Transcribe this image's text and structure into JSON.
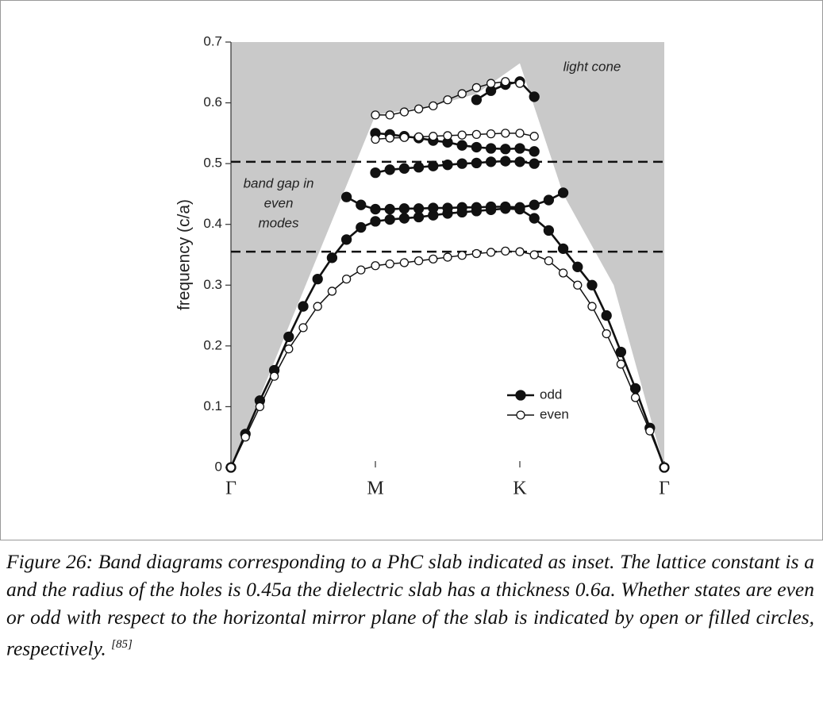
{
  "chart_data": {
    "type": "line",
    "y_label": "frequency (c/a)",
    "x": [
      0,
      0.1,
      0.2,
      0.3,
      0.4,
      0.5,
      0.6,
      0.7,
      0.8,
      0.9,
      1.0,
      1.1,
      1.2,
      1.3,
      1.4,
      1.5,
      1.6,
      1.7,
      1.8,
      1.9,
      2.0,
      2.1,
      2.2,
      2.3,
      2.4,
      2.5,
      2.6,
      2.7,
      2.8,
      2.9,
      3.0
    ],
    "xlim": [
      0,
      3
    ],
    "xticks": [
      {
        "value": 0,
        "label": "Γ"
      },
      {
        "value": 1,
        "label": "M"
      },
      {
        "value": 2,
        "label": "K"
      },
      {
        "value": 3,
        "label": "Γ"
      }
    ],
    "ylim": [
      0,
      0.7
    ],
    "yticks": [
      0,
      0.1,
      0.2,
      0.3,
      0.4,
      0.5,
      0.6,
      0.7
    ],
    "series": [
      {
        "name": "odd",
        "color": "#111111",
        "filled": true,
        "bands": [
          [
            0,
            0.055,
            0.11,
            0.16,
            0.215,
            0.265,
            0.31,
            0.345,
            0.375,
            0.395,
            0.405,
            0.408,
            0.41,
            0.412,
            0.415,
            0.418,
            0.42,
            0.422,
            0.424,
            0.426,
            0.425,
            0.41,
            0.39,
            0.36,
            0.33,
            0.3,
            0.25,
            0.19,
            0.13,
            0.065,
            0
          ],
          [
            null,
            null,
            null,
            null,
            null,
            null,
            null,
            null,
            0.445,
            0.432,
            0.425,
            0.425,
            0.426,
            0.426,
            0.427,
            0.427,
            0.428,
            0.428,
            0.429,
            0.429,
            0.428,
            0.432,
            0.44,
            0.452,
            null,
            null,
            null,
            null,
            null,
            null,
            null
          ],
          [
            null,
            null,
            null,
            null,
            null,
            null,
            null,
            null,
            null,
            null,
            0.485,
            0.49,
            0.492,
            0.494,
            0.496,
            0.498,
            0.5,
            0.501,
            0.503,
            0.504,
            0.503,
            0.5,
            null,
            null,
            null,
            null,
            null,
            null,
            null,
            null,
            null
          ],
          [
            null,
            null,
            null,
            null,
            null,
            null,
            null,
            null,
            null,
            null,
            0.55,
            0.548,
            0.545,
            0.542,
            0.538,
            0.535,
            0.53,
            0.527,
            0.525,
            0.524,
            0.525,
            0.52,
            null,
            null,
            null,
            null,
            null,
            null,
            null,
            null,
            null
          ],
          [
            null,
            null,
            null,
            null,
            null,
            null,
            null,
            null,
            null,
            null,
            null,
            null,
            null,
            null,
            null,
            null,
            null,
            0.605,
            0.62,
            0.63,
            0.635,
            0.61,
            null,
            null,
            null,
            null,
            null,
            null,
            null,
            null,
            null
          ]
        ]
      },
      {
        "name": "even",
        "color": "#111111",
        "filled": false,
        "bands": [
          [
            0,
            0.05,
            0.1,
            0.15,
            0.195,
            0.23,
            0.265,
            0.29,
            0.31,
            0.325,
            0.332,
            0.335,
            0.337,
            0.34,
            0.343,
            0.346,
            0.349,
            0.352,
            0.354,
            0.356,
            0.355,
            0.35,
            0.34,
            0.32,
            0.3,
            0.265,
            0.22,
            0.17,
            0.115,
            0.06,
            0
          ],
          [
            null,
            null,
            null,
            null,
            null,
            null,
            null,
            null,
            null,
            null,
            0.54,
            0.542,
            0.543,
            0.544,
            0.545,
            0.546,
            0.547,
            0.548,
            0.549,
            0.55,
            0.55,
            0.545,
            null,
            null,
            null,
            null,
            null,
            null,
            null,
            null,
            null
          ],
          [
            null,
            null,
            null,
            null,
            null,
            null,
            null,
            null,
            null,
            null,
            0.58,
            0.58,
            0.585,
            0.59,
            0.595,
            0.605,
            0.615,
            0.625,
            0.632,
            0.635,
            0.632,
            null,
            null,
            null,
            null,
            null,
            null,
            null,
            null,
            null,
            null
          ]
        ]
      }
    ],
    "light_cone": {
      "label": "light cone",
      "x": [
        0,
        1,
        1.4,
        1.7,
        2,
        2.3,
        2.65,
        3
      ],
      "y": [
        0,
        0.58,
        0.595,
        0.615,
        0.665,
        0.45,
        0.3,
        0
      ]
    },
    "band_gap": {
      "label": [
        "band gap in",
        "even",
        "modes"
      ],
      "y": [
        0.355,
        0.503
      ]
    },
    "caption": {
      "text": "Figure 26: Band diagrams corresponding to  a PhC slab indicated as inset. The lattice constant is a and the radius of the holes is 0.45a the dielectric slab has a  thickness 0.6a. Whether states are even or odd with respect to the horizontal mirror plane of the slab is indicated by open or filled circles, respectively.",
      "reference": "[85]"
    }
  }
}
